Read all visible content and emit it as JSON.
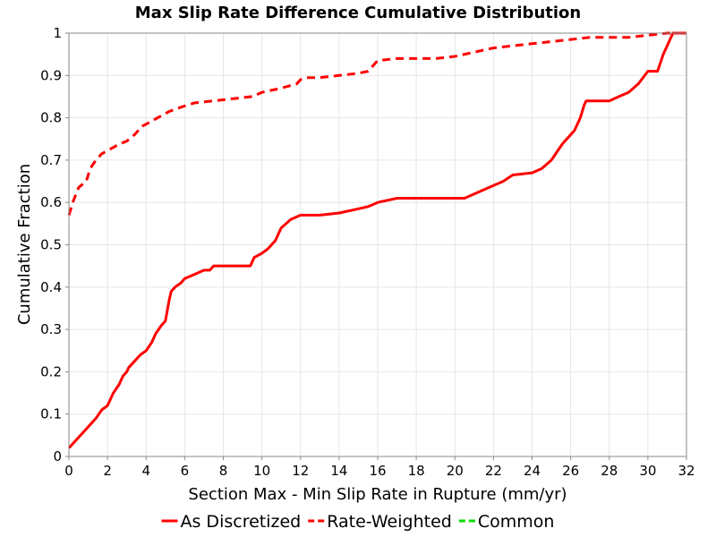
{
  "chart_data": {
    "type": "line",
    "title": "Max Slip Rate Difference Cumulative Distribution",
    "xlabel": "Section Max - Min Slip Rate in Rupture (mm/yr)",
    "ylabel": "Cumulative Fraction",
    "xlim": [
      0,
      32
    ],
    "ylim": [
      0,
      1
    ],
    "x_ticks": [
      0,
      2,
      4,
      6,
      8,
      10,
      12,
      14,
      16,
      18,
      20,
      22,
      24,
      26,
      28,
      30,
      32
    ],
    "y_ticks": [
      0,
      0.1,
      0.2,
      0.3,
      0.4,
      0.5,
      0.6,
      0.7,
      0.8,
      0.9,
      1
    ],
    "grid": true,
    "legend_position": "bottom",
    "series": [
      {
        "name": "As Discretized",
        "color": "#ff0000",
        "dash": "solid",
        "x": [
          0,
          0.4,
          0.8,
          1.0,
          1.4,
          1.7,
          2.0,
          2.3,
          2.6,
          2.8,
          3.0,
          3.1,
          3.5,
          3.7,
          4.0,
          4.3,
          4.5,
          4.8,
          5.0,
          5.2,
          5.3,
          5.5,
          5.8,
          6.0,
          6.5,
          7.0,
          7.3,
          7.5,
          8.0,
          9.0,
          9.4,
          9.6,
          10.0,
          10.3,
          10.7,
          11.0,
          11.5,
          12.0,
          13.0,
          14.0,
          15.0,
          15.5,
          16.0,
          17.0,
          18.0,
          19.0,
          20.0,
          20.5,
          21.0,
          21.5,
          22.0,
          22.5,
          23.0,
          24.0,
          24.5,
          25.0,
          25.3,
          25.6,
          25.8,
          26.2,
          26.5,
          26.7,
          26.8,
          27.5,
          28.0,
          28.5,
          29.0,
          29.5,
          30.0,
          30.5,
          30.8,
          31.0,
          31.3,
          32.0
        ],
        "y": [
          0.02,
          0.04,
          0.06,
          0.07,
          0.09,
          0.11,
          0.12,
          0.15,
          0.17,
          0.19,
          0.2,
          0.21,
          0.23,
          0.24,
          0.25,
          0.27,
          0.29,
          0.31,
          0.32,
          0.37,
          0.39,
          0.4,
          0.41,
          0.42,
          0.43,
          0.44,
          0.44,
          0.45,
          0.45,
          0.45,
          0.45,
          0.47,
          0.48,
          0.49,
          0.51,
          0.54,
          0.56,
          0.57,
          0.57,
          0.575,
          0.585,
          0.59,
          0.6,
          0.61,
          0.61,
          0.61,
          0.61,
          0.61,
          0.62,
          0.63,
          0.64,
          0.65,
          0.665,
          0.67,
          0.68,
          0.7,
          0.72,
          0.74,
          0.75,
          0.77,
          0.8,
          0.83,
          0.84,
          0.84,
          0.84,
          0.85,
          0.86,
          0.88,
          0.91,
          0.91,
          0.95,
          0.97,
          1.0,
          1.0
        ]
      },
      {
        "name": "Rate-Weighted",
        "color": "#ff0000",
        "dash": "dashed",
        "x": [
          0,
          0.2,
          0.5,
          0.9,
          1.1,
          1.4,
          1.7,
          2.1,
          2.5,
          3.0,
          3.4,
          3.8,
          4.2,
          4.6,
          5.2,
          5.8,
          6.5,
          7.5,
          8.5,
          9.5,
          10.0,
          11.0,
          11.8,
          12.0,
          12.3,
          13.0,
          14.0,
          15.0,
          15.5,
          16.0,
          17.0,
          18.0,
          19.0,
          20.0,
          21.0,
          21.5,
          22.0,
          23.0,
          24.0,
          25.0,
          26.0,
          27.0,
          28.0,
          29.0,
          30.0,
          31.0,
          31.5,
          32.0
        ],
        "y": [
          0.57,
          0.6,
          0.635,
          0.65,
          0.68,
          0.7,
          0.715,
          0.725,
          0.735,
          0.745,
          0.76,
          0.78,
          0.79,
          0.8,
          0.815,
          0.825,
          0.835,
          0.84,
          0.845,
          0.85,
          0.86,
          0.87,
          0.88,
          0.89,
          0.895,
          0.895,
          0.9,
          0.905,
          0.91,
          0.935,
          0.94,
          0.94,
          0.94,
          0.945,
          0.955,
          0.96,
          0.965,
          0.97,
          0.975,
          0.98,
          0.985,
          0.99,
          0.99,
          0.99,
          0.995,
          1.0,
          1.0,
          1.0
        ]
      },
      {
        "name": "Common",
        "color": "#00dd00",
        "dash": "dashed",
        "x": [],
        "y": []
      }
    ]
  }
}
